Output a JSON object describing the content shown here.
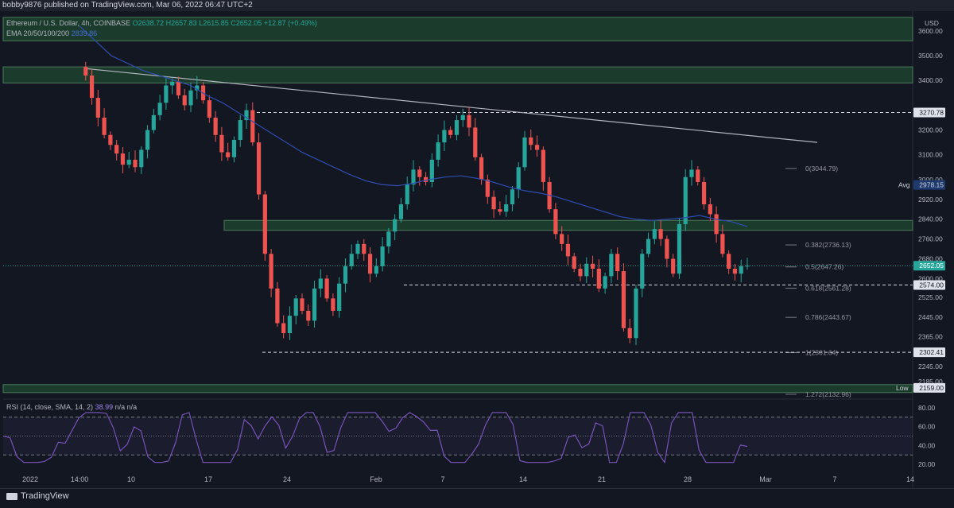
{
  "header": {
    "publish_line": "bobby9876 published on TradingView.com, Mar 06, 2022 06:47 UTC+2"
  },
  "legend": {
    "symbol": "Ethereum / U.S. Dollar, 4h, COINBASE",
    "open": "O2638.72",
    "high": "H2657.83",
    "low": "L2615.85",
    "close": "C2652.05",
    "change": "+12.87 (+0.49%)",
    "ema_label": "EMA 20/50/100/200",
    "ema_value": "2839.86"
  },
  "rsi_legend": {
    "label": "RSI (14, close, SMA, 14, 2)",
    "value": "38.99",
    "na": "n/a  n/a"
  },
  "footer": {
    "brand": "TradingView"
  },
  "colors": {
    "bull": "#26a69a",
    "bear": "#ef5350",
    "zone": "#1f4a30",
    "zone_edge": "#4c7a5c",
    "ema": "#2f4db0",
    "rsi": "#7e57c2",
    "bg": "#131722"
  },
  "chart_data": {
    "type": "candlestick",
    "symbol": "ETHUSD",
    "timeframe": "4h",
    "y_axis": {
      "unit": "USD",
      "ticks": [
        3600,
        3500,
        3400,
        3270.78,
        3200,
        3100,
        3000,
        2978.15,
        2920,
        2840,
        2760,
        2680,
        2652.05,
        2600,
        2574,
        2525,
        2445,
        2365,
        2302.41,
        2245,
        2185,
        2159
      ],
      "tick_labels": [
        "3600.00",
        "3500.00",
        "3400.00",
        "3200.00",
        "3100.00",
        "3000.00",
        "2920.00",
        "2840.00",
        "2760.00",
        "2680.00",
        "2600.00",
        "2525.00",
        "2445.00",
        "2365.00",
        "2245.00",
        "2185.00"
      ],
      "range": [
        2120,
        3680
      ]
    },
    "x_axis": {
      "tick_labels": [
        "2022",
        "14:00",
        "10",
        "17",
        "24",
        "Feb",
        "7",
        "14",
        "21",
        "28",
        "Mar",
        "7",
        "14",
        "21"
      ]
    },
    "price_badges": [
      {
        "label": "USD",
        "value": ""
      },
      {
        "label": "",
        "value": "3270.78"
      },
      {
        "label": "Avg",
        "value": "2978.15"
      },
      {
        "label": "",
        "value": "2652.05"
      },
      {
        "label": "",
        "value": "2574.00"
      },
      {
        "label": "",
        "value": "2302.41"
      },
      {
        "label": "Low",
        "value": "2159.00"
      }
    ],
    "fib_levels": [
      {
        "ratio": "0",
        "price": 3044.79,
        "label": "0(3044.79)"
      },
      {
        "ratio": "0.382",
        "price": 2736.13,
        "label": "0.382(2736.13)"
      },
      {
        "ratio": "0.5",
        "price": 2647.26,
        "label": "0.5(2647.26)"
      },
      {
        "ratio": "0.618",
        "price": 2561.28,
        "label": "0.618(2561.28)"
      },
      {
        "ratio": "0.786",
        "price": 2443.67,
        "label": "0.786(2443.67)"
      },
      {
        "ratio": "1",
        "price": 2301.64,
        "label": "1(2301.64)"
      },
      {
        "ratio": "1.272",
        "price": 2132.96,
        "label": "1.272(2132.96)"
      }
    ],
    "zones": [
      {
        "from": 3560,
        "to": 3655
      },
      {
        "from": 3390,
        "to": 3455
      },
      {
        "from": 2795,
        "to": 2835
      },
      {
        "from": 2140,
        "to": 2172
      }
    ],
    "dashed_levels": [
      3270.78,
      2574.0,
      2302.41
    ],
    "trendline": {
      "from": {
        "date": "2022-01-01",
        "price": 3448
      },
      "to": {
        "date": "2022-03-13",
        "price": 3150
      }
    },
    "close_series": [
      3455,
      3420,
      3330,
      3250,
      3180,
      3140,
      3105,
      3060,
      3080,
      3050,
      3120,
      3200,
      3260,
      3310,
      3380,
      3395,
      3340,
      3300,
      3360,
      3380,
      3320,
      3250,
      3180,
      3110,
      3090,
      3160,
      3240,
      3280,
      3150,
      2940,
      2700,
      2560,
      2420,
      2380,
      2450,
      2520,
      2470,
      2430,
      2560,
      2600,
      2520,
      2470,
      2580,
      2650,
      2700,
      2740,
      2700,
      2620,
      2650,
      2730,
      2790,
      2840,
      2900,
      2980,
      3040,
      3010,
      2990,
      3080,
      3150,
      3200,
      3180,
      3240,
      3260,
      3210,
      3090,
      3000,
      2930,
      2880,
      2870,
      2900,
      2960,
      3050,
      3170,
      3140,
      3120,
      2990,
      2880,
      2780,
      2740,
      2690,
      2640,
      2610,
      2660,
      2640,
      2560,
      2610,
      2700,
      2630,
      2400,
      2360,
      2560,
      2700,
      2760,
      2800,
      2760,
      2680,
      2620,
      2820,
      3010,
      3040,
      2990,
      2900,
      2860,
      2780,
      2700,
      2640,
      2620,
      2650,
      2652
    ],
    "ema_series": [
      3620,
      3560,
      3500,
      3470,
      3440,
      3420,
      3400,
      3380,
      3340,
      3310,
      3270,
      3230,
      3190,
      3150,
      3110,
      3080,
      3050,
      3020,
      2995,
      2980,
      2975,
      2985,
      3000,
      3010,
      3015,
      3005,
      2990,
      2970,
      2955,
      2945,
      2930,
      2910,
      2890,
      2870,
      2850,
      2840,
      2835,
      2840,
      2845,
      2855,
      2840,
      2830,
      2810
    ],
    "rsi": {
      "levels": [
        70,
        50,
        30
      ],
      "range": [
        15,
        85
      ],
      "tick_labels": [
        "80.00",
        "60.00",
        "40.00",
        "20.00"
      ],
      "current": 38.99
    }
  }
}
